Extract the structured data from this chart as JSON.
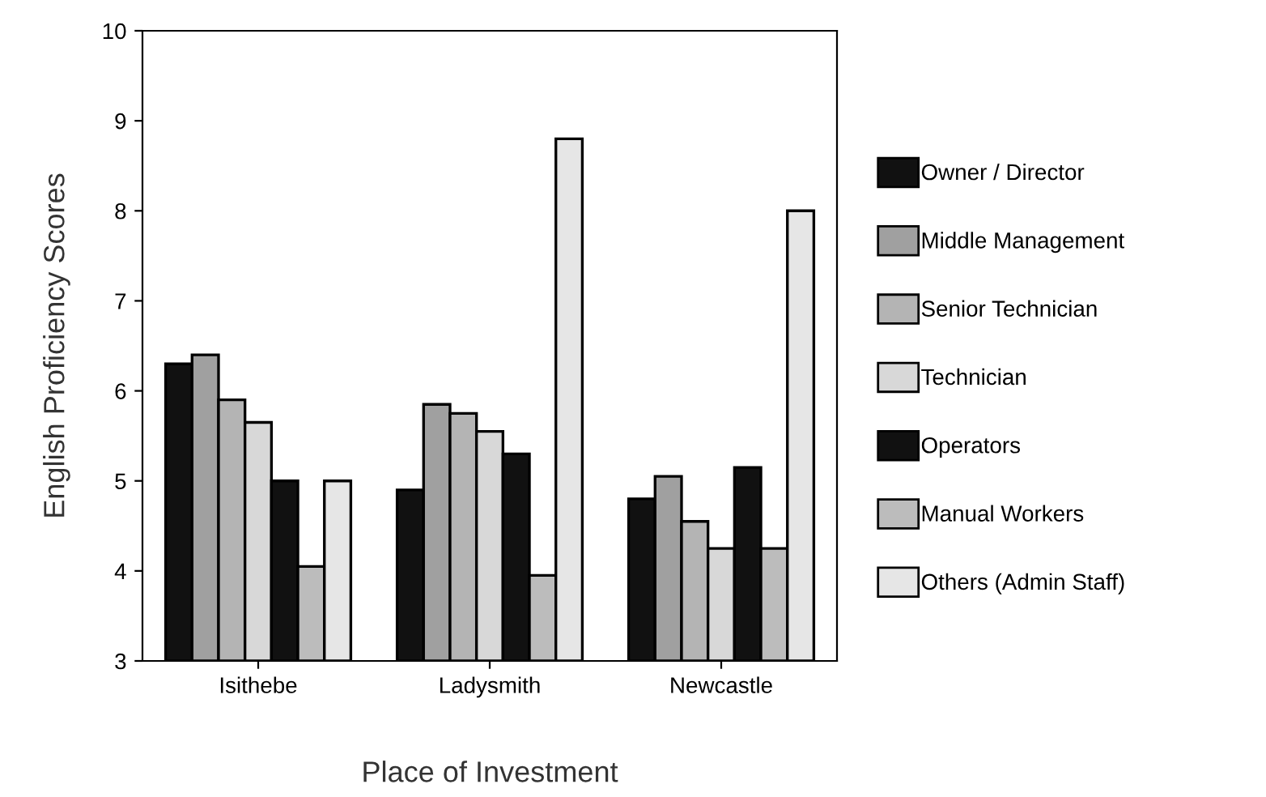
{
  "chart_data": {
    "type": "bar",
    "xlabel": "Place of Investment",
    "ylabel": "English Proficiency Scores",
    "categories": [
      "Isithebe",
      "Ladysmith",
      "Newcastle"
    ],
    "series": [
      {
        "name": "Owner / Director",
        "color": "#111111",
        "values": [
          6.3,
          4.9,
          4.8
        ]
      },
      {
        "name": "Middle Management",
        "color": "#a0a0a0",
        "values": [
          6.4,
          5.85,
          5.05
        ]
      },
      {
        "name": "Senior Technician",
        "color": "#b4b4b4",
        "values": [
          5.9,
          5.75,
          4.55
        ]
      },
      {
        "name": "Technician",
        "color": "#d8d8d8",
        "values": [
          5.65,
          5.55,
          4.25
        ]
      },
      {
        "name": "Operators",
        "color": "#111111",
        "values": [
          5.0,
          5.3,
          5.15
        ]
      },
      {
        "name": "Manual Workers",
        "color": "#bcbcbc",
        "values": [
          4.05,
          3.95,
          4.25
        ]
      },
      {
        "name": "Others (Admin Staff)",
        "color": "#e6e6e6",
        "values": [
          5.0,
          8.8,
          8.0
        ]
      }
    ],
    "ylim": [
      3,
      10
    ],
    "yticks": [
      3,
      4,
      5,
      6,
      7,
      8,
      9,
      10
    ],
    "grid": false,
    "legend": "right"
  }
}
